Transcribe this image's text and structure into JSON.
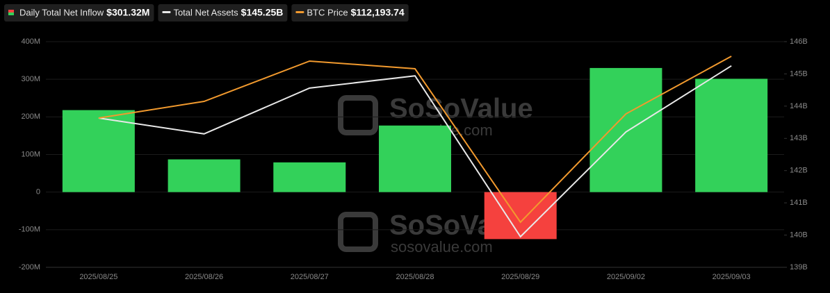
{
  "chart_data": {
    "type": "bar_line",
    "categories": [
      "2025/08/25",
      "2025/08/26",
      "2025/08/27",
      "2025/08/28",
      "2025/08/29",
      "2025/09/02",
      "2025/09/03"
    ],
    "series": [
      {
        "name": "Daily Total Net Inflow",
        "legend_value": "$301.32M",
        "color": "#33d15a",
        "negative_color": "#f5413e",
        "kind": "bar",
        "values": [
          218,
          87,
          79,
          177,
          -125,
          330,
          301.32
        ]
      },
      {
        "name": "Total Net Assets",
        "legend_value": "$145.25B",
        "color": "#e8e8e8",
        "kind": "line",
        "axis": "y2",
        "values": [
          143.63,
          143.14,
          144.56,
          144.94,
          139.95,
          143.2,
          145.25
        ]
      },
      {
        "name": "BTC Price",
        "legend_value": "$112,193.74",
        "color": "#f29a2e",
        "kind": "line",
        "axis": "hidden",
        "values": [
          110781,
          111162,
          112083,
          111908,
          108400,
          110876,
          112193.74
        ]
      }
    ],
    "ylim": [
      -200,
      400
    ],
    "yticks": [
      {
        "value": -200,
        "label": "-200M"
      },
      {
        "value": -100,
        "label": "-100M"
      },
      0,
      {
        "value": 100,
        "label": "100M"
      },
      {
        "value": 200,
        "label": "200M"
      },
      {
        "value": 300,
        "label": "300M"
      },
      {
        "value": 400,
        "label": "400M"
      }
    ],
    "y2lim": [
      139,
      146
    ],
    "y2ticks": [
      {
        "value": 139,
        "label": "139B"
      },
      {
        "value": 140,
        "label": "140B"
      },
      {
        "value": 141,
        "label": "141B"
      },
      {
        "value": 142,
        "label": "142B"
      },
      {
        "value": 143,
        "label": "143B"
      },
      {
        "value": 144,
        "label": "144B"
      },
      {
        "value": 145,
        "label": "145B"
      },
      {
        "value": 146,
        "label": "146B"
      }
    ],
    "grid": true,
    "watermark": "SoSoValue",
    "watermark_url": "sosovalue.com"
  }
}
